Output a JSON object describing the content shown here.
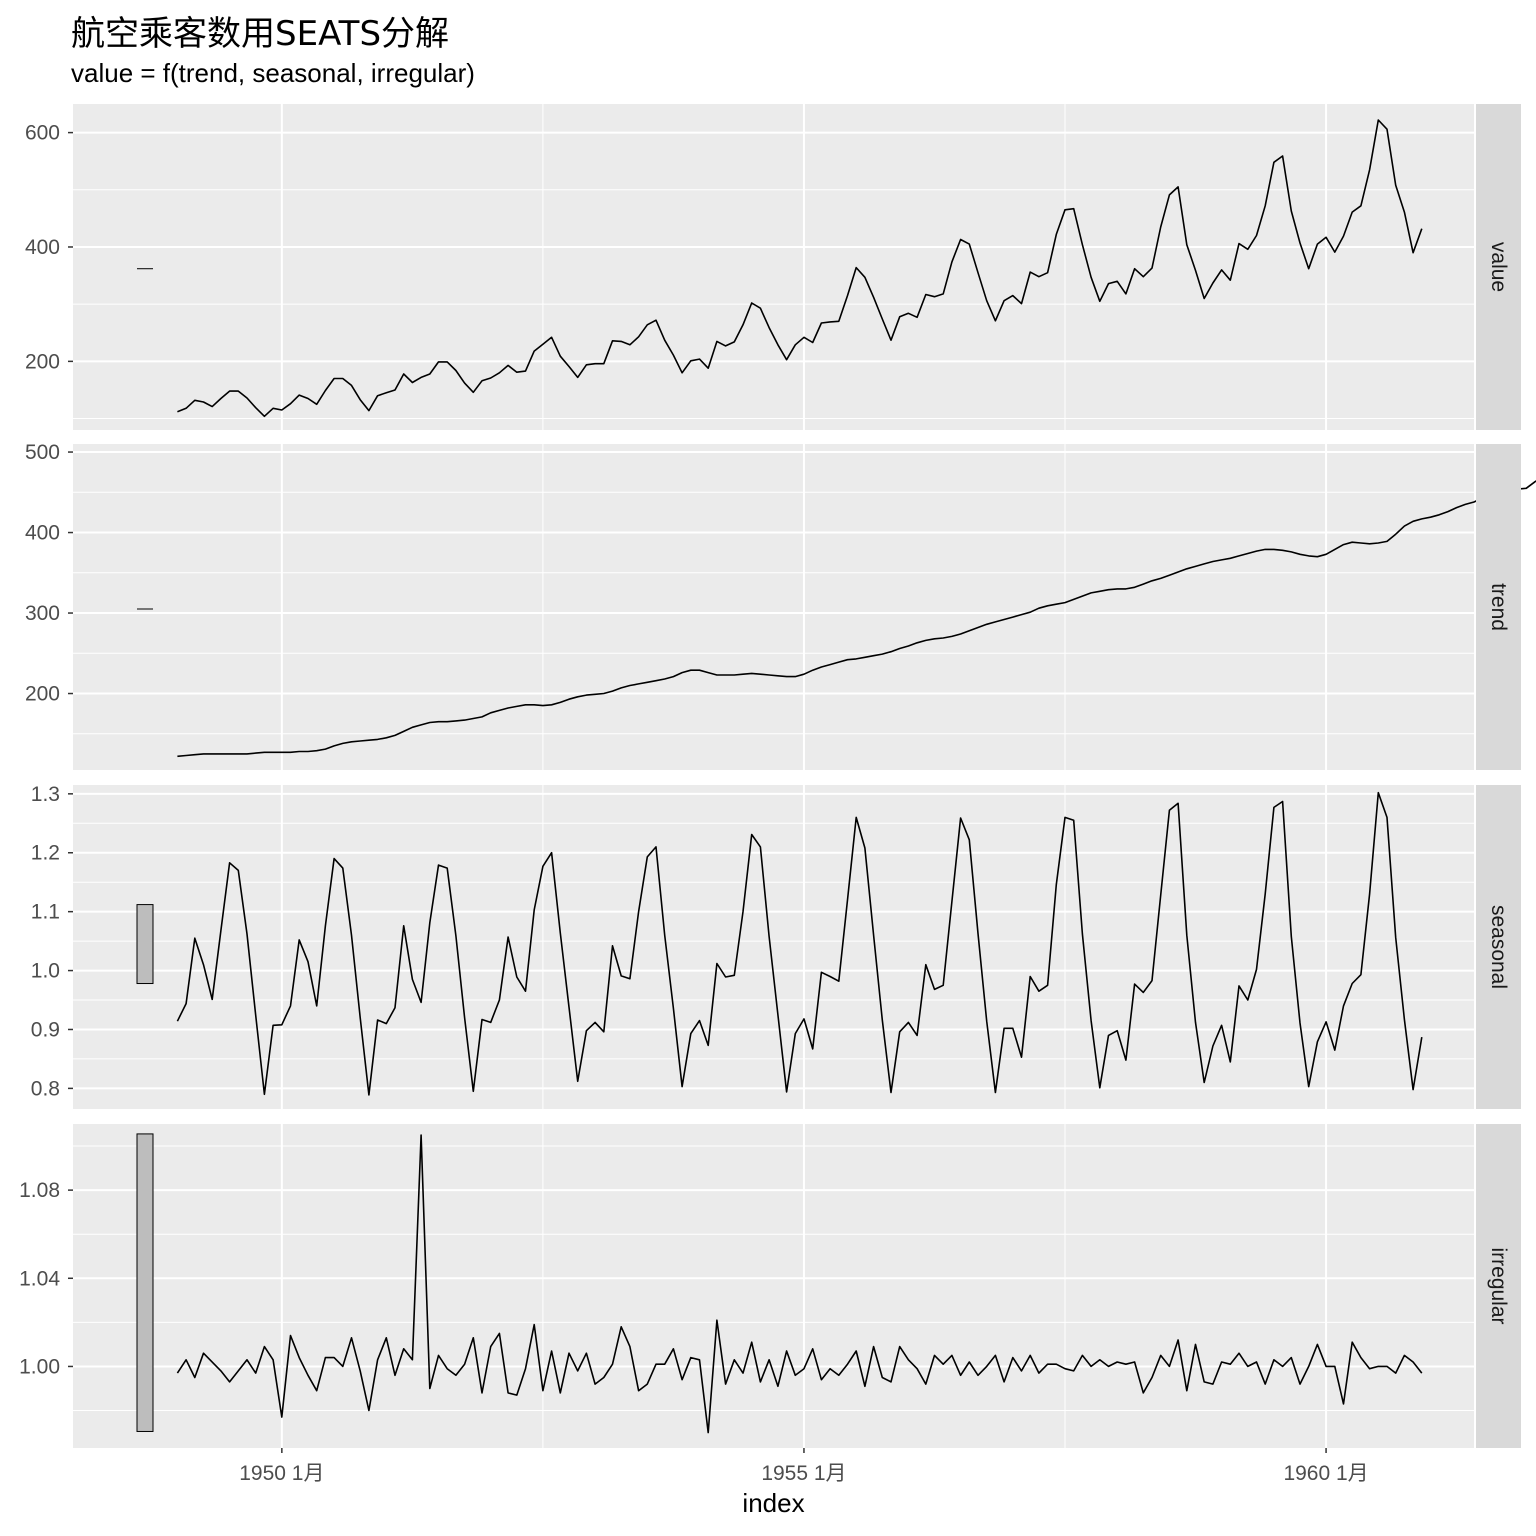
{
  "title": "航空乘客数用SEATS分解",
  "subtitle": "value = f(trend, seasonal, irregular)",
  "xlabel": "index",
  "colors": {
    "panel_bg": "#ebebeb",
    "grid": "#ffffff",
    "strip_bg": "#d9d9d9",
    "line": "#000000",
    "range_bar_fill": "#bdbdbd"
  },
  "chart_data": {
    "type": "line",
    "layout": "faceted-vertical",
    "facet_labels_position": "right",
    "x": {
      "start": "1949-01",
      "end": "1960-12",
      "frequency": "monthly",
      "tick_labels": [
        "1950 1月",
        "1955 1月",
        "1960 1月"
      ],
      "range": [
        "1948-01",
        "1961-06"
      ]
    },
    "panels": [
      {
        "name": "value",
        "ylim": [
          80,
          650
        ],
        "yticks": [
          200,
          400,
          600
        ],
        "yticklabels": [
          "200",
          "400",
          "600"
        ],
        "range_bar": [
          362,
          362
        ],
        "values": [
          112,
          118,
          132,
          129,
          121,
          135,
          148,
          148,
          136,
          119,
          104,
          118,
          115,
          126,
          141,
          135,
          125,
          149,
          170,
          170,
          158,
          133,
          114,
          140,
          145,
          150,
          178,
          163,
          172,
          178,
          199,
          199,
          184,
          162,
          146,
          166,
          171,
          180,
          193,
          181,
          183,
          218,
          230,
          242,
          209,
          191,
          172,
          194,
          196,
          196,
          236,
          235,
          229,
          243,
          264,
          272,
          237,
          211,
          180,
          201,
          204,
          188,
          235,
          227,
          234,
          264,
          302,
          293,
          259,
          229,
          203,
          229,
          242,
          233,
          267,
          269,
          270,
          315,
          364,
          347,
          312,
          274,
          237,
          278,
          284,
          277,
          317,
          313,
          318,
          374,
          413,
          405,
          355,
          306,
          271,
          306,
          315,
          301,
          356,
          348,
          355,
          422,
          465,
          467,
          404,
          347,
          305,
          336,
          340,
          318,
          362,
          348,
          363,
          435,
          491,
          505,
          404,
          359,
          310,
          337,
          360,
          342,
          406,
          396,
          420,
          472,
          548,
          559,
          463,
          407,
          362,
          405,
          417,
          391,
          419,
          461,
          472,
          535,
          622,
          606,
          508,
          461,
          390,
          432
        ]
      },
      {
        "name": "trend",
        "ylim": [
          105,
          510
        ],
        "yticks": [
          200,
          300,
          400,
          500
        ],
        "yticklabels": [
          "200",
          "300",
          "400",
          "500"
        ],
        "range_bar": [
          305,
          305
        ],
        "values": [
          122,
          123,
          124,
          125,
          125,
          125,
          125,
          125,
          125,
          126,
          127,
          127,
          127,
          127,
          128,
          128,
          129,
          131,
          135,
          138,
          140,
          141,
          142,
          143,
          145,
          148,
          153,
          158,
          161,
          164,
          165,
          165,
          166,
          167,
          169,
          171,
          176,
          179,
          182,
          184,
          186,
          186,
          185,
          186,
          189,
          193,
          196,
          198,
          199,
          200,
          203,
          207,
          210,
          212,
          214,
          216,
          218,
          221,
          226,
          229,
          229,
          226,
          223,
          223,
          223,
          224,
          225,
          224,
          223,
          222,
          221,
          221,
          224,
          229,
          233,
          236,
          239,
          242,
          243,
          245,
          247,
          249,
          252,
          256,
          259,
          263,
          266,
          268,
          269,
          271,
          274,
          278,
          282,
          286,
          289,
          292,
          295,
          298,
          301,
          306,
          309,
          311,
          313,
          317,
          321,
          325,
          327,
          329,
          330,
          330,
          332,
          336,
          340,
          343,
          347,
          351,
          355,
          358,
          361,
          364,
          366,
          368,
          371,
          374,
          377,
          379,
          379,
          378,
          376,
          373,
          371,
          370,
          373,
          379,
          385,
          388,
          387,
          386,
          387,
          389,
          398,
          408,
          414,
          417,
          419,
          422,
          426,
          431,
          435,
          438,
          443,
          449,
          455,
          456,
          454,
          455,
          463,
          470,
          476,
          478,
          480,
          482,
          485,
          487,
          488,
          488
        ]
      },
      {
        "name": "seasonal",
        "ylim": [
          0.765,
          1.315
        ],
        "yticks": [
          0.8,
          0.9,
          1.0,
          1.1,
          1.2,
          1.3
        ],
        "yticklabels": [
          "0.8",
          "0.9",
          "1.0",
          "1.1",
          "1.2",
          "1.3"
        ],
        "range_bar": [
          0.978,
          1.112
        ],
        "values": [
          0.914,
          0.944,
          1.055,
          1.01,
          0.951,
          1.068,
          1.183,
          1.17,
          1.062,
          0.924,
          0.79,
          0.907,
          0.908,
          0.94,
          1.052,
          1.015,
          0.94,
          1.076,
          1.19,
          1.174,
          1.06,
          0.92,
          0.789,
          0.916,
          0.91,
          0.937,
          1.076,
          0.985,
          0.946,
          1.081,
          1.179,
          1.174,
          1.059,
          0.92,
          0.795,
          0.917,
          0.912,
          0.95,
          1.057,
          0.989,
          0.965,
          1.103,
          1.177,
          1.2,
          1.064,
          0.938,
          0.812,
          0.898,
          0.912,
          0.896,
          1.042,
          0.991,
          0.986,
          1.1,
          1.193,
          1.21,
          1.06,
          0.936,
          0.803,
          0.893,
          0.915,
          0.873,
          1.012,
          0.989,
          0.992,
          1.1,
          1.231,
          1.21,
          1.058,
          0.925,
          0.794,
          0.893,
          0.918,
          0.867,
          0.997,
          0.99,
          0.982,
          1.12,
          1.26,
          1.208,
          1.06,
          0.916,
          0.793,
          0.896,
          0.912,
          0.89,
          1.01,
          0.968,
          0.975,
          1.117,
          1.259,
          1.222,
          1.063,
          0.914,
          0.793,
          0.902,
          0.902,
          0.853,
          0.99,
          0.965,
          0.975,
          1.146,
          1.26,
          1.255,
          1.062,
          0.915,
          0.801,
          0.89,
          0.898,
          0.848,
          0.977,
          0.963,
          0.983,
          1.128,
          1.272,
          1.284,
          1.06,
          0.912,
          0.81,
          0.872,
          0.907,
          0.845,
          0.974,
          0.95,
          1.002,
          1.13,
          1.277,
          1.287,
          1.058,
          0.911,
          0.803,
          0.879,
          0.913,
          0.865,
          0.94,
          0.978,
          0.993,
          1.13,
          1.302,
          1.26,
          1.056,
          0.917,
          0.798,
          0.887
        ]
      },
      {
        "name": "irregular",
        "ylim": [
          0.963,
          1.11
        ],
        "yticks": [
          1.0,
          1.04,
          1.08
        ],
        "yticklabels": [
          "1.00",
          "1.04",
          "1.08"
        ],
        "range_bar": [
          0.9705,
          1.1055
        ],
        "values": [
          0.997,
          1.003,
          0.995,
          1.006,
          1.002,
          0.998,
          0.993,
          0.998,
          1.003,
          0.997,
          1.009,
          1.003,
          0.977,
          1.014,
          1.004,
          0.996,
          0.989,
          1.004,
          1.004,
          1.0,
          1.013,
          0.998,
          0.98,
          1.003,
          1.013,
          0.996,
          1.008,
          1.003,
          1.105,
          0.99,
          1.005,
          0.999,
          0.996,
          1.001,
          1.013,
          0.988,
          1.009,
          1.015,
          0.988,
          0.987,
          0.999,
          1.019,
          0.989,
          1.007,
          0.988,
          1.006,
          0.998,
          1.006,
          0.992,
          0.995,
          1.001,
          1.018,
          1.009,
          0.989,
          0.992,
          1.001,
          1.001,
          1.008,
          0.994,
          1.004,
          1.003,
          0.97,
          1.021,
          0.992,
          1.003,
          0.997,
          1.011,
          0.993,
          1.003,
          0.991,
          1.007,
          0.996,
          0.999,
          1.008,
          0.994,
          0.999,
          0.996,
          1.001,
          1.007,
          0.991,
          1.009,
          0.995,
          0.993,
          1.009,
          1.003,
          0.999,
          0.992,
          1.005,
          1.001,
          1.005,
          0.996,
          1.002,
          0.996,
          1.0,
          1.005,
          0.993,
          1.004,
          0.998,
          1.005,
          0.997,
          1.001,
          1.001,
          0.999,
          0.998,
          1.005,
          1.0,
          1.003,
          1.0,
          1.002,
          1.001,
          1.002,
          0.988,
          0.995,
          1.005,
          1.0,
          1.012,
          0.989,
          1.01,
          0.993,
          0.992,
          1.002,
          1.001,
          1.006,
          1.0,
          1.002,
          0.992,
          1.003,
          1.0,
          1.004,
          0.992,
          1.0,
          1.01,
          1.0,
          1.0,
          0.983,
          1.011,
          1.004,
          0.999,
          1.0,
          1.0,
          0.997,
          1.005,
          1.002,
          0.997
        ]
      }
    ]
  }
}
